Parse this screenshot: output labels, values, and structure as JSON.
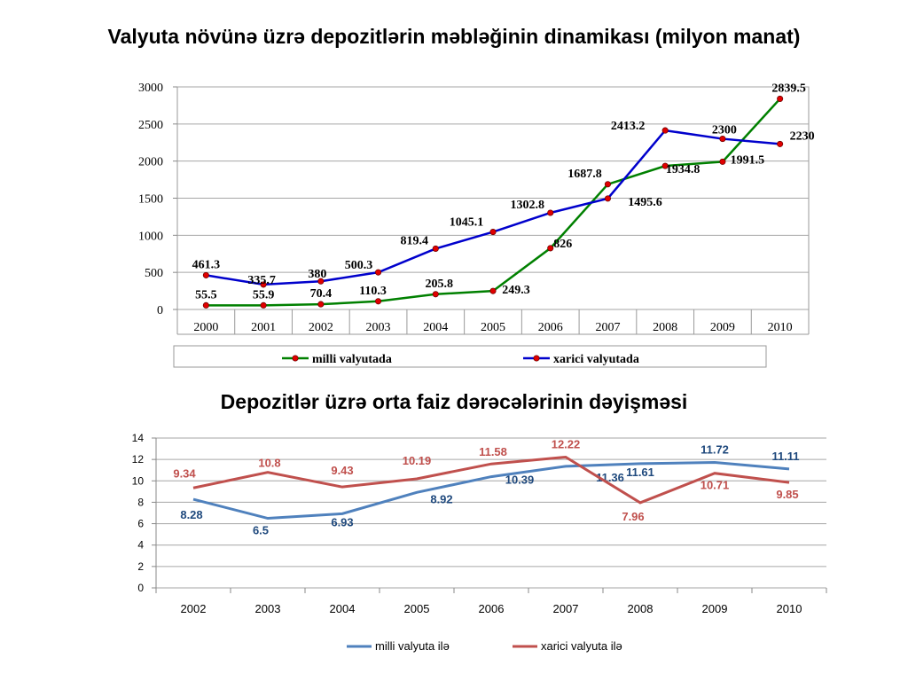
{
  "slide": {
    "title1": "Valyuta növünə üzrə depozitlərin məbləğinin dinamikası (milyon manat)",
    "title2": "Depozitlər üzrə orta faiz dərəcələrinin dəyişməsi"
  },
  "chart_data": [
    {
      "type": "line",
      "title": "Valyuta növünə üzrə depozitlərin məbləğinin dinamikası (milyon manat)",
      "categories": [
        "2000",
        "2001",
        "2002",
        "2003",
        "2004",
        "2005",
        "2006",
        "2007",
        "2008",
        "2009",
        "2010"
      ],
      "ylim": [
        0,
        3000
      ],
      "yticks": [
        "0",
        "500",
        "1000",
        "1500",
        "2000",
        "2500",
        "3000"
      ],
      "grid": true,
      "legend": "bottom",
      "series": [
        {
          "name": "milli valyutada",
          "color": "#008000",
          "values": [
            55.5,
            55.9,
            70.4,
            110.3,
            205.8,
            249.3,
            826,
            1687.8,
            1934.8,
            1991.5,
            2839.5
          ],
          "labels": [
            "55.5",
            "55.9",
            "70.4",
            "110.3",
            "205.8",
            "249.3",
            "826",
            "1687.8",
            "1934.8",
            "1991.5",
            "2839.5"
          ]
        },
        {
          "name": "xarici valyutada",
          "color": "#0000cc",
          "values": [
            461.3,
            335.7,
            380,
            500.3,
            819.4,
            1045.1,
            1302.8,
            1495.6,
            2413.2,
            2300,
            2230
          ],
          "labels": [
            "461.3",
            "335.7",
            "380",
            "500.3",
            "819.4",
            "1045.1",
            "1302.8",
            "1495.6",
            "2413.2",
            "2300",
            "2230"
          ]
        }
      ]
    },
    {
      "type": "line",
      "title": "Depozitlər üzrə orta faiz dərəcələrinin dəyişməsi",
      "categories": [
        "2002",
        "2003",
        "2004",
        "2005",
        "2006",
        "2007",
        "2008",
        "2009",
        "2010"
      ],
      "ylim": [
        0,
        14
      ],
      "yticks": [
        "0",
        "2",
        "4",
        "6",
        "8",
        "10",
        "12",
        "14"
      ],
      "grid": true,
      "legend": "bottom",
      "series": [
        {
          "name": "milli valyuta ilə",
          "color": "#4f81bd",
          "labelColor": "#1f497d",
          "values": [
            8.28,
            6.5,
            6.93,
            8.92,
            10.39,
            11.36,
            11.61,
            11.72,
            11.11
          ],
          "labels": [
            "8.28",
            "6.5",
            "6.93",
            "8.92",
            "10.39",
            "11.36",
            "11.61",
            "11.72",
            "11.11"
          ]
        },
        {
          "name": "xarici valyuta ilə",
          "color": "#c0504d",
          "labelColor": "#c0504d",
          "values": [
            9.34,
            10.8,
            9.43,
            10.19,
            11.58,
            12.22,
            7.96,
            10.71,
            9.85
          ],
          "labels": [
            "9.34",
            "10.8",
            "9.43",
            "10.19",
            "11.58",
            "12.22",
            "7.96",
            "10.71",
            "9.85"
          ]
        }
      ]
    }
  ]
}
